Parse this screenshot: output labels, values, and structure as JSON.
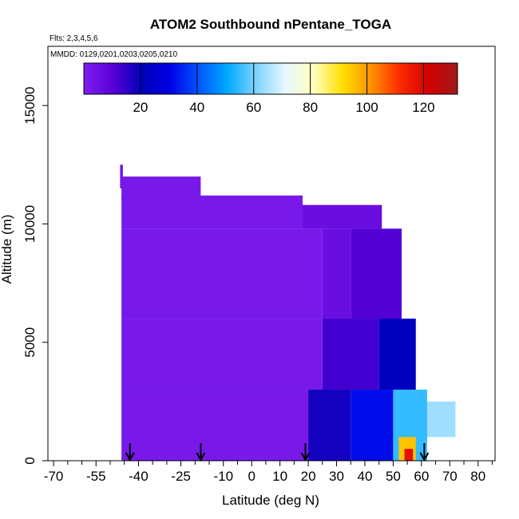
{
  "chart_data": {
    "type": "heatmap",
    "title": "ATOM2 Southbound nPentane_TOGA",
    "flights_label": "Flts: 2,3,4,5,6",
    "dates_label": "MMDD: 0129,0201,0203,0205,0210",
    "xlabel": "Latitude (deg N)",
    "ylabel": "Altitude (m)",
    "xlim": [
      -72,
      86
    ],
    "ylim": [
      0,
      17500
    ],
    "x_ticks": [
      -70,
      -55,
      -40,
      -25,
      -10,
      0,
      10,
      20,
      30,
      40,
      50,
      60,
      70,
      80
    ],
    "y_ticks": [
      0,
      5000,
      10000,
      15000
    ],
    "colorbar": {
      "min": 0,
      "max": 132,
      "ticks": [
        20,
        40,
        60,
        80,
        100,
        120
      ],
      "colors": [
        "#7f1fef",
        "#5a00d8",
        "#0000b8",
        "#0000e6",
        "#0055ff",
        "#00aaff",
        "#7fd3ff",
        "#e8f8ff",
        "#ffffc0",
        "#ffe000",
        "#ff9000",
        "#ff2a00",
        "#d40000",
        "#9f1a1a"
      ]
    },
    "arrows_latitude": [
      -43,
      -18,
      19,
      61
    ],
    "profiles": [
      {
        "lat0": -46.5,
        "lat1": -45.5,
        "alt0": 11500,
        "alt1": 12500,
        "value": 3
      },
      {
        "lat0": -46,
        "lat1": -18,
        "alt0": 11000,
        "alt1": 12000,
        "value": 2
      },
      {
        "lat0": -46,
        "lat1": 18,
        "alt0": 9800,
        "alt1": 11200,
        "value": 2
      },
      {
        "lat0": 18,
        "lat1": 46,
        "alt0": 9800,
        "alt1": 10800,
        "value": 6
      },
      {
        "lat0": -46,
        "lat1": 25,
        "alt0": 6000,
        "alt1": 9800,
        "value": 2
      },
      {
        "lat0": 25,
        "lat1": 35,
        "alt0": 6000,
        "alt1": 9800,
        "value": 6
      },
      {
        "lat0": 35,
        "lat1": 53,
        "alt0": 6000,
        "alt1": 9800,
        "value": 11
      },
      {
        "lat0": -46,
        "lat1": 25,
        "alt0": 3000,
        "alt1": 6000,
        "value": 2
      },
      {
        "lat0": 25,
        "lat1": 45,
        "alt0": 3000,
        "alt1": 6000,
        "value": 13
      },
      {
        "lat0": 45,
        "lat1": 58,
        "alt0": 3000,
        "alt1": 6000,
        "value": 22
      },
      {
        "lat0": -46,
        "lat1": 20,
        "alt0": 0,
        "alt1": 3000,
        "value": 2
      },
      {
        "lat0": 20,
        "lat1": 35,
        "alt0": 0,
        "alt1": 3000,
        "value": 18
      },
      {
        "lat0": 35,
        "lat1": 50,
        "alt0": 0,
        "alt1": 3000,
        "value": 32
      },
      {
        "lat0": 50,
        "lat1": 62,
        "alt0": 0,
        "alt1": 3000,
        "value": 55
      },
      {
        "lat0": 62,
        "lat1": 72,
        "alt0": 1000,
        "alt1": 2500,
        "value": 64
      },
      {
        "lat0": 52,
        "lat1": 58,
        "alt0": 0,
        "alt1": 1000,
        "value": 95
      },
      {
        "lat0": 54,
        "lat1": 57,
        "alt0": 0,
        "alt1": 500,
        "value": 118
      }
    ]
  }
}
